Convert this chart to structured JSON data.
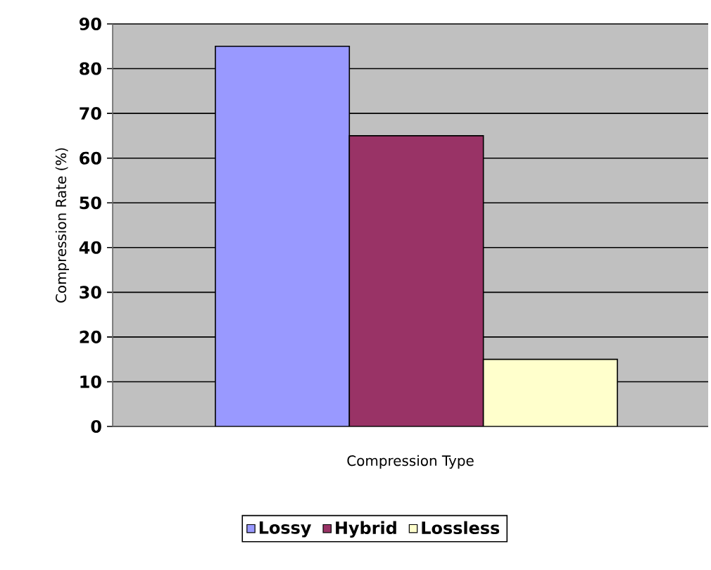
{
  "chart_data": {
    "type": "bar",
    "xlabel": "Compression Type",
    "ylabel": "Compression Rate (%)",
    "categories": [
      null
    ],
    "series": [
      {
        "name": "Lossy",
        "color": "#9999ff",
        "values": [
          85
        ]
      },
      {
        "name": "Hybrid",
        "color": "#993366",
        "values": [
          65
        ]
      },
      {
        "name": "Lossless",
        "color": "#ffffcc",
        "values": [
          15
        ]
      }
    ],
    "ylim": [
      0,
      90
    ],
    "yticks": [
      0,
      10,
      20,
      30,
      40,
      50,
      60,
      70,
      80,
      90
    ],
    "grid": "y",
    "legend": "bottom"
  }
}
